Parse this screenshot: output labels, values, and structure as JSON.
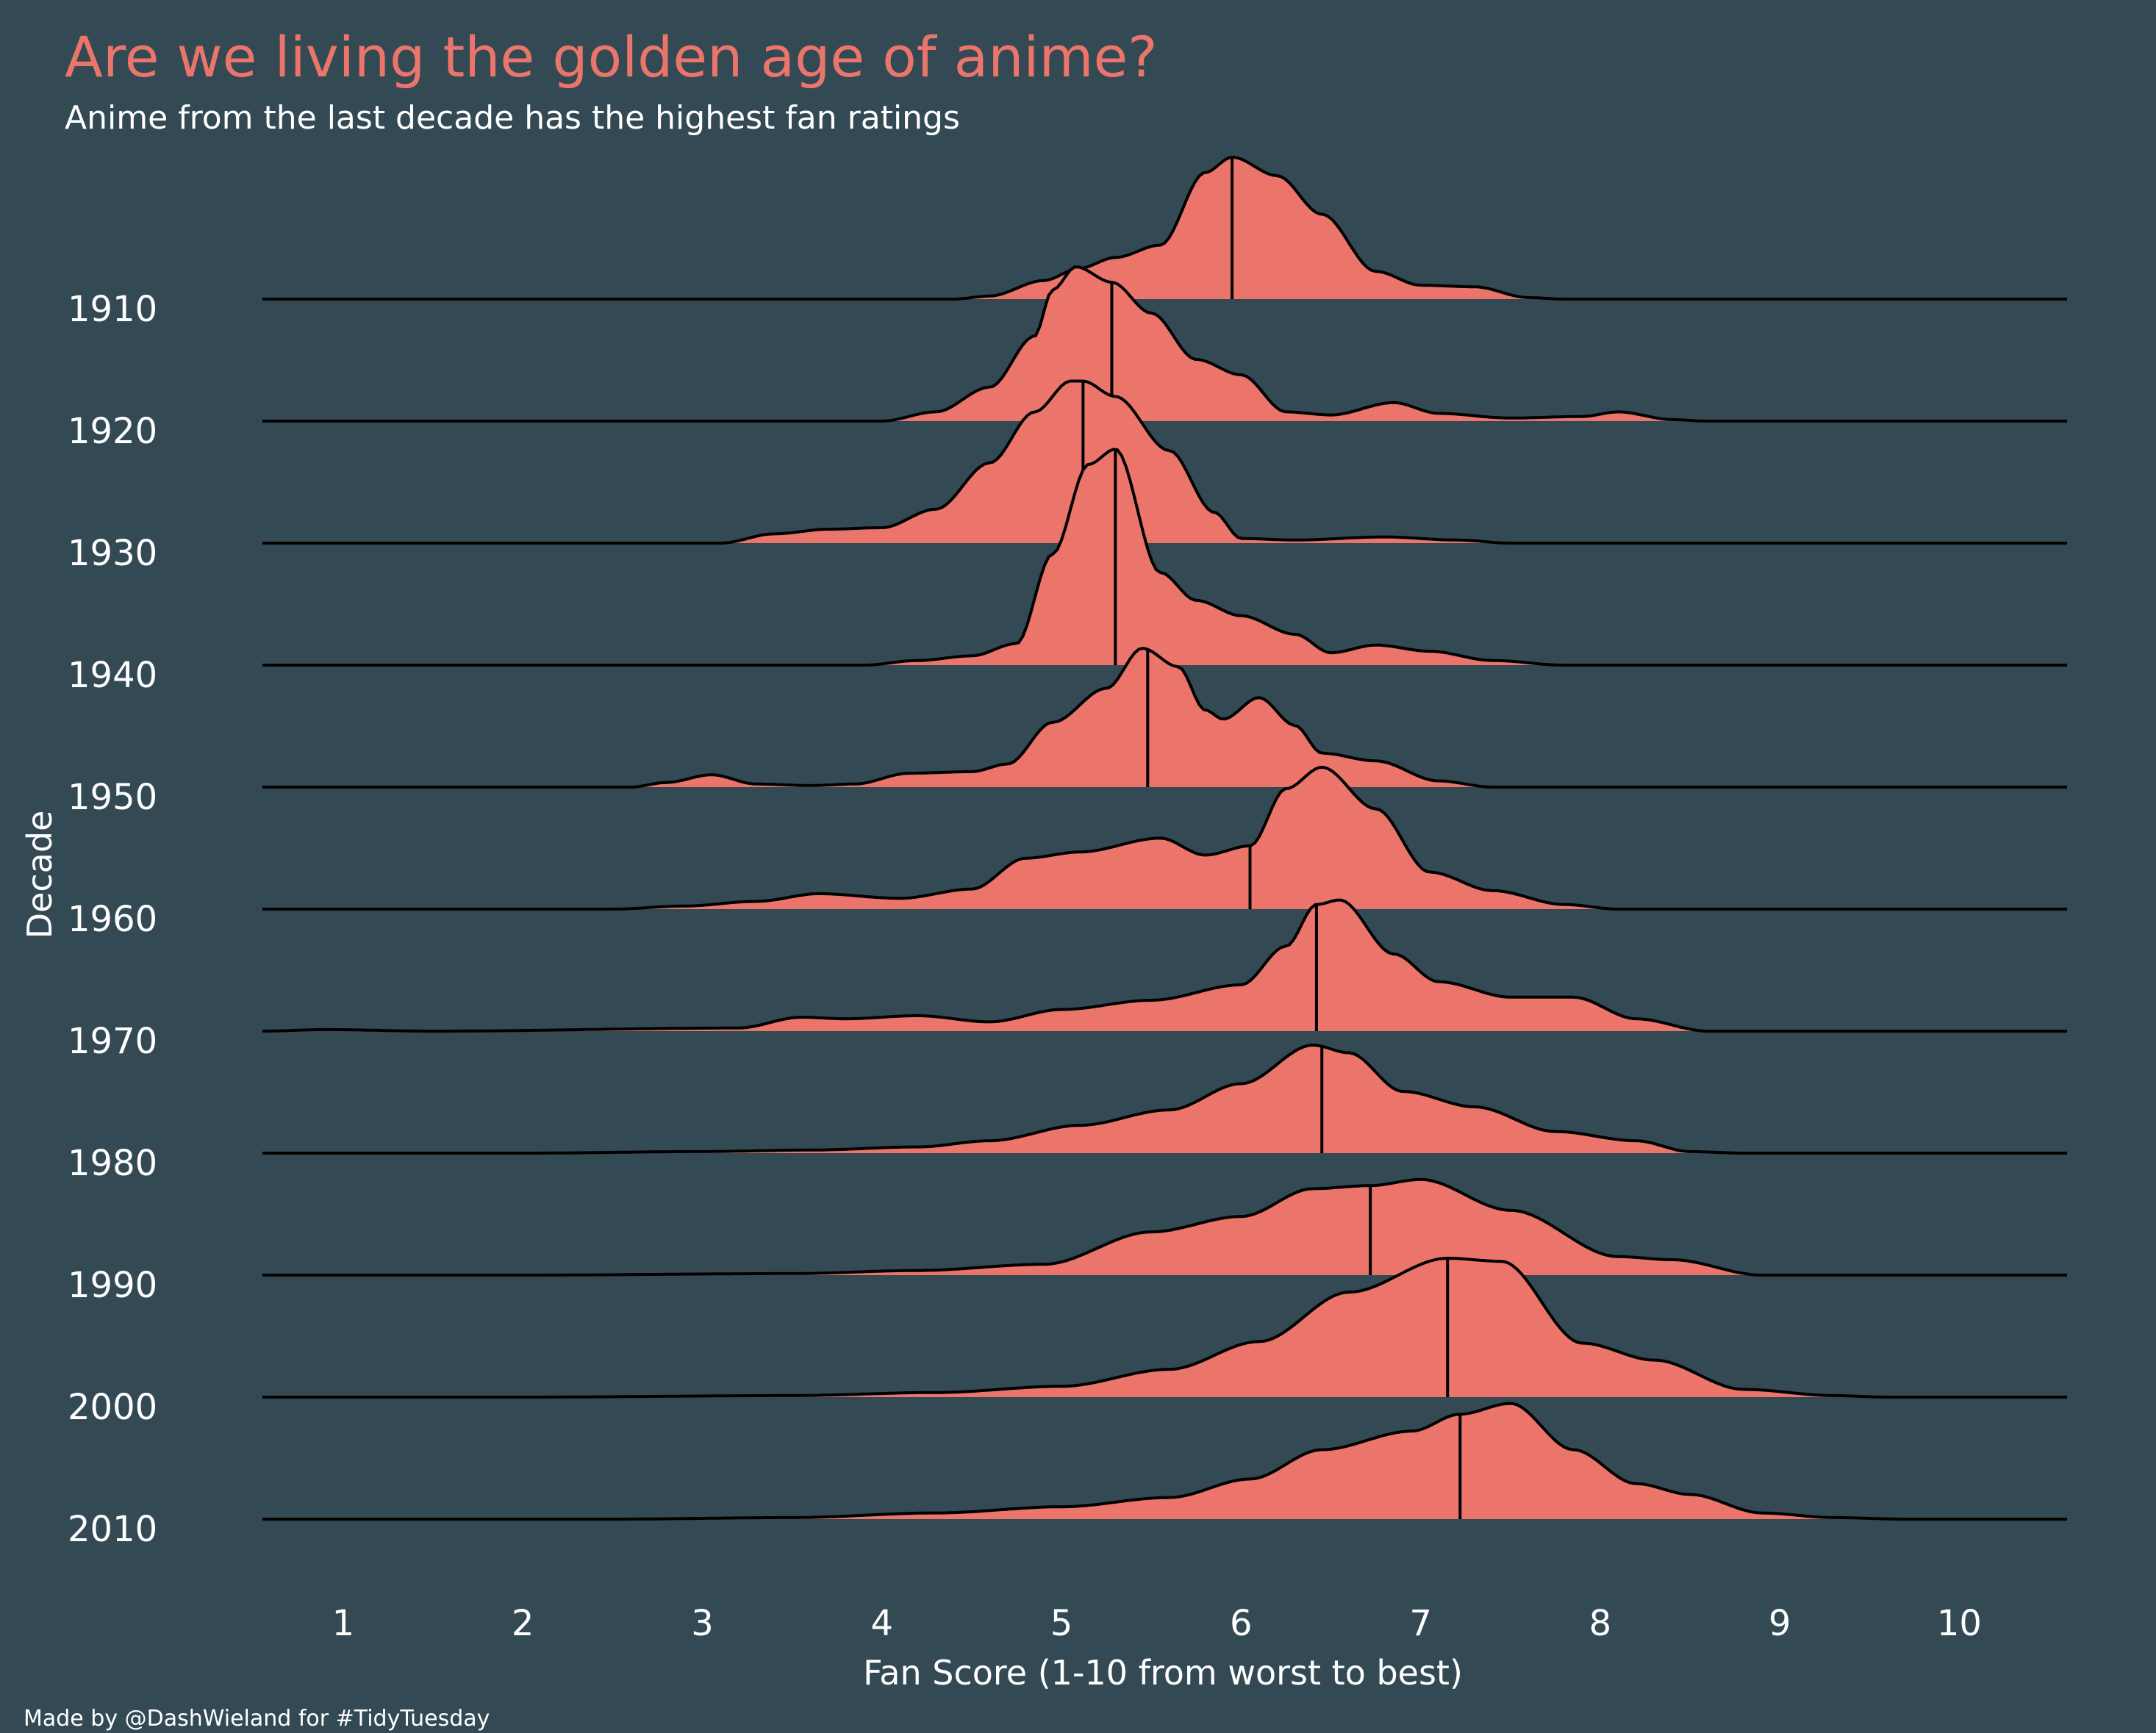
{
  "chart_data": {
    "type": "ridgeline",
    "title": "Are we living the golden age of anime?",
    "subtitle": "Anime from the last decade has the highest fan ratings",
    "xlabel": "Fan Score (1-10 from worst to best)",
    "ylabel": "Decade",
    "caption": "Made by @DashWieland for #TidyTuesday",
    "xlim": [
      0.55,
      10.6
    ],
    "x_ticks": [
      "1",
      "2",
      "3",
      "4",
      "5",
      "6",
      "7",
      "8",
      "9",
      "10"
    ],
    "grid": false,
    "colors": {
      "background": "#334a54",
      "fill": "#ec756b",
      "line": "#000000",
      "title": "#ec756b",
      "text": "#ffffff"
    },
    "series": [
      {
        "name": "1910",
        "median": 5.95,
        "density": [
          [
            0.55,
            0
          ],
          [
            4.4,
            0
          ],
          [
            4.6,
            0.02
          ],
          [
            4.9,
            0.12
          ],
          [
            5.1,
            0.2
          ],
          [
            5.3,
            0.27
          ],
          [
            5.55,
            0.35
          ],
          [
            5.8,
            0.82
          ],
          [
            5.95,
            0.92
          ],
          [
            6.2,
            0.8
          ],
          [
            6.45,
            0.55
          ],
          [
            6.75,
            0.18
          ],
          [
            7.0,
            0.09
          ],
          [
            7.3,
            0.08
          ],
          [
            7.6,
            0.01
          ],
          [
            7.8,
            0
          ],
          [
            10.6,
            0
          ]
        ]
      },
      {
        "name": "1920",
        "median": 5.28,
        "density": [
          [
            0.55,
            0
          ],
          [
            4.0,
            0
          ],
          [
            4.3,
            0.06
          ],
          [
            4.6,
            0.22
          ],
          [
            4.85,
            0.55
          ],
          [
            4.95,
            0.85
          ],
          [
            5.08,
            1.0
          ],
          [
            5.28,
            0.9
          ],
          [
            5.5,
            0.7
          ],
          [
            5.75,
            0.4
          ],
          [
            6.0,
            0.3
          ],
          [
            6.25,
            0.06
          ],
          [
            6.5,
            0.04
          ],
          [
            6.85,
            0.12
          ],
          [
            7.1,
            0.05
          ],
          [
            7.5,
            0.02
          ],
          [
            7.9,
            0.03
          ],
          [
            8.1,
            0.06
          ],
          [
            8.4,
            0.01
          ],
          [
            8.6,
            0
          ],
          [
            10.6,
            0
          ]
        ]
      },
      {
        "name": "1930",
        "median": 5.12,
        "density": [
          [
            0.55,
            0
          ],
          [
            3.1,
            0
          ],
          [
            3.4,
            0.06
          ],
          [
            3.7,
            0.09
          ],
          [
            4.0,
            0.1
          ],
          [
            4.3,
            0.22
          ],
          [
            4.6,
            0.52
          ],
          [
            4.85,
            0.85
          ],
          [
            5.05,
            1.05
          ],
          [
            5.12,
            1.05
          ],
          [
            5.3,
            0.95
          ],
          [
            5.6,
            0.6
          ],
          [
            5.85,
            0.2
          ],
          [
            6.0,
            0.03
          ],
          [
            6.3,
            0.02
          ],
          [
            6.8,
            0.04
          ],
          [
            7.2,
            0.02
          ],
          [
            7.5,
            0
          ],
          [
            10.6,
            0
          ]
        ]
      },
      {
        "name": "1940",
        "median": 5.3,
        "density": [
          [
            0.55,
            0
          ],
          [
            3.9,
            0
          ],
          [
            4.2,
            0.03
          ],
          [
            4.5,
            0.06
          ],
          [
            4.75,
            0.14
          ],
          [
            4.95,
            0.72
          ],
          [
            5.15,
            1.3
          ],
          [
            5.3,
            1.4
          ],
          [
            5.55,
            0.6
          ],
          [
            5.75,
            0.42
          ],
          [
            6.0,
            0.32
          ],
          [
            6.3,
            0.2
          ],
          [
            6.5,
            0.08
          ],
          [
            6.75,
            0.13
          ],
          [
            7.05,
            0.09
          ],
          [
            7.4,
            0.03
          ],
          [
            7.8,
            0
          ],
          [
            10.6,
            0
          ]
        ]
      },
      {
        "name": "1950",
        "median": 5.48,
        "density": [
          [
            0.55,
            0
          ],
          [
            2.6,
            0
          ],
          [
            2.8,
            0.03
          ],
          [
            3.05,
            0.08
          ],
          [
            3.3,
            0.02
          ],
          [
            3.6,
            0.01
          ],
          [
            3.85,
            0.02
          ],
          [
            4.15,
            0.09
          ],
          [
            4.5,
            0.1
          ],
          [
            4.7,
            0.15
          ],
          [
            4.95,
            0.42
          ],
          [
            5.25,
            0.64
          ],
          [
            5.45,
            0.9
          ],
          [
            5.65,
            0.78
          ],
          [
            5.8,
            0.5
          ],
          [
            5.9,
            0.44
          ],
          [
            6.1,
            0.58
          ],
          [
            6.3,
            0.4
          ],
          [
            6.45,
            0.22
          ],
          [
            6.75,
            0.17
          ],
          [
            7.1,
            0.04
          ],
          [
            7.4,
            0
          ],
          [
            10.6,
            0
          ]
        ]
      },
      {
        "name": "1960",
        "median": 6.05,
        "density": [
          [
            0.55,
            0
          ],
          [
            2.5,
            0
          ],
          [
            2.9,
            0.02
          ],
          [
            3.3,
            0.05
          ],
          [
            3.65,
            0.1
          ],
          [
            4.1,
            0.07
          ],
          [
            4.5,
            0.13
          ],
          [
            4.8,
            0.33
          ],
          [
            5.1,
            0.37
          ],
          [
            5.55,
            0.46
          ],
          [
            5.8,
            0.35
          ],
          [
            6.05,
            0.41
          ],
          [
            6.25,
            0.78
          ],
          [
            6.45,
            0.92
          ],
          [
            6.75,
            0.65
          ],
          [
            7.05,
            0.24
          ],
          [
            7.4,
            0.12
          ],
          [
            7.8,
            0.03
          ],
          [
            8.1,
            0
          ],
          [
            10.6,
            0
          ]
        ]
      },
      {
        "name": "1970",
        "median": 6.42,
        "density": [
          [
            0.55,
            0
          ],
          [
            0.9,
            0.01
          ],
          [
            1.5,
            0
          ],
          [
            3.2,
            0.02
          ],
          [
            3.55,
            0.09
          ],
          [
            3.8,
            0.08
          ],
          [
            4.2,
            0.1
          ],
          [
            4.6,
            0.06
          ],
          [
            5.0,
            0.14
          ],
          [
            5.5,
            0.2
          ],
          [
            6.0,
            0.3
          ],
          [
            6.25,
            0.55
          ],
          [
            6.42,
            0.82
          ],
          [
            6.55,
            0.85
          ],
          [
            6.85,
            0.5
          ],
          [
            7.1,
            0.32
          ],
          [
            7.5,
            0.22
          ],
          [
            7.85,
            0.22
          ],
          [
            8.2,
            0.08
          ],
          [
            8.6,
            0
          ],
          [
            10.6,
            0
          ]
        ]
      },
      {
        "name": "1980",
        "median": 6.45,
        "density": [
          [
            0.55,
            0
          ],
          [
            2.0,
            0
          ],
          [
            3.0,
            0.01
          ],
          [
            3.6,
            0.02
          ],
          [
            4.2,
            0.04
          ],
          [
            4.6,
            0.08
          ],
          [
            5.1,
            0.18
          ],
          [
            5.6,
            0.28
          ],
          [
            6.0,
            0.45
          ],
          [
            6.4,
            0.7
          ],
          [
            6.6,
            0.65
          ],
          [
            6.9,
            0.4
          ],
          [
            7.3,
            0.3
          ],
          [
            7.75,
            0.14
          ],
          [
            8.2,
            0.08
          ],
          [
            8.5,
            0.01
          ],
          [
            8.8,
            0
          ],
          [
            10.6,
            0
          ]
        ]
      },
      {
        "name": "1990",
        "median": 6.72,
        "density": [
          [
            0.55,
            0
          ],
          [
            2.0,
            0
          ],
          [
            3.5,
            0.01
          ],
          [
            4.2,
            0.03
          ],
          [
            4.9,
            0.07
          ],
          [
            5.5,
            0.28
          ],
          [
            6.0,
            0.38
          ],
          [
            6.4,
            0.56
          ],
          [
            6.72,
            0.58
          ],
          [
            7.0,
            0.62
          ],
          [
            7.5,
            0.42
          ],
          [
            8.1,
            0.12
          ],
          [
            8.4,
            0.1
          ],
          [
            8.9,
            0
          ],
          [
            10.6,
            0
          ]
        ]
      },
      {
        "name": "2000",
        "median": 7.15,
        "density": [
          [
            0.55,
            0
          ],
          [
            2.0,
            0
          ],
          [
            3.5,
            0.01
          ],
          [
            4.3,
            0.03
          ],
          [
            5.0,
            0.07
          ],
          [
            5.6,
            0.18
          ],
          [
            6.1,
            0.36
          ],
          [
            6.6,
            0.68
          ],
          [
            7.15,
            0.9
          ],
          [
            7.45,
            0.88
          ],
          [
            7.9,
            0.35
          ],
          [
            8.3,
            0.24
          ],
          [
            8.8,
            0.05
          ],
          [
            9.3,
            0.01
          ],
          [
            9.6,
            0
          ],
          [
            10.6,
            0
          ]
        ]
      },
      {
        "name": "2010",
        "median": 7.22,
        "density": [
          [
            0.55,
            0
          ],
          [
            2.5,
            0
          ],
          [
            3.5,
            0.01
          ],
          [
            4.3,
            0.04
          ],
          [
            5.0,
            0.08
          ],
          [
            5.6,
            0.14
          ],
          [
            6.05,
            0.26
          ],
          [
            6.45,
            0.45
          ],
          [
            6.95,
            0.57
          ],
          [
            7.22,
            0.68
          ],
          [
            7.5,
            0.75
          ],
          [
            7.85,
            0.45
          ],
          [
            8.2,
            0.23
          ],
          [
            8.5,
            0.16
          ],
          [
            8.9,
            0.04
          ],
          [
            9.3,
            0.01
          ],
          [
            9.7,
            0
          ],
          [
            10.6,
            0
          ]
        ]
      }
    ]
  }
}
